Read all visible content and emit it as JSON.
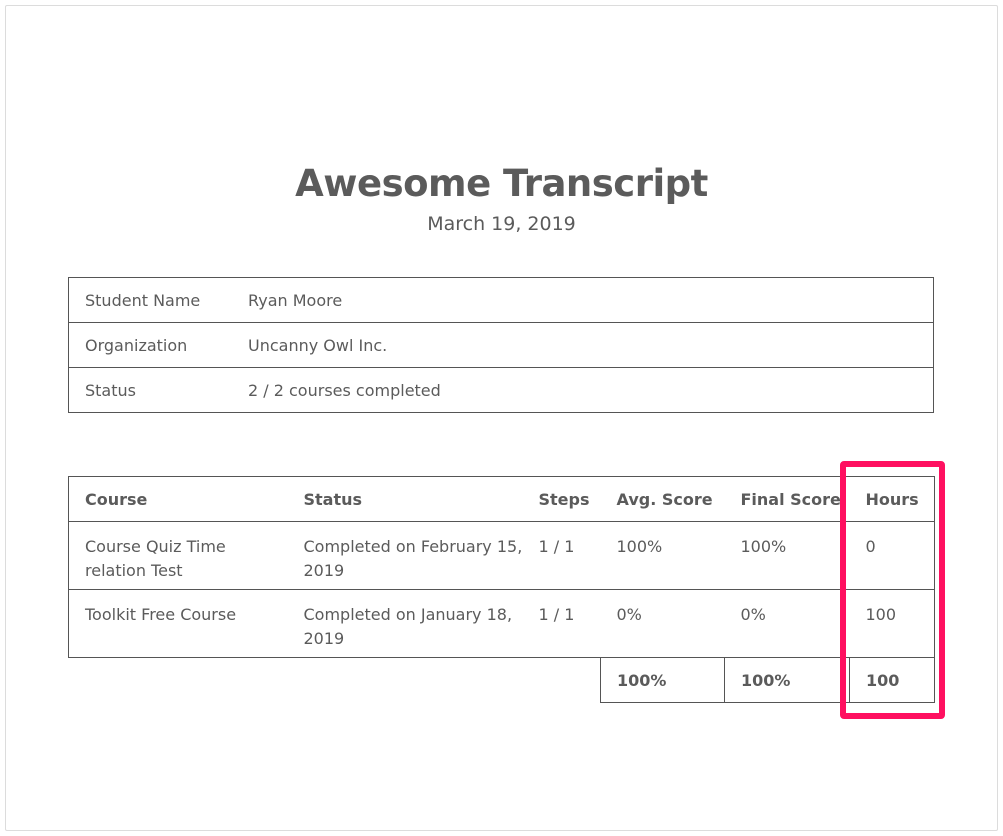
{
  "title": "Awesome Transcript",
  "date": "March 19, 2019",
  "info": [
    {
      "label": "Student Name",
      "value": "Ryan Moore"
    },
    {
      "label": "Organization",
      "value": "Uncanny Owl Inc."
    },
    {
      "label": "Status",
      "value": "2 / 2 courses completed"
    }
  ],
  "courses": {
    "headers": [
      "Course",
      "Status",
      "Steps",
      "Avg. Score",
      "Final Score",
      "Hours"
    ],
    "rows": [
      [
        "Course Quiz Time relation Test",
        "Completed on February 15, 2019",
        "1 / 1",
        "100%",
        "100%",
        "0"
      ],
      [
        "Toolkit Free Course",
        "Completed on January 18, 2019",
        "1 / 1",
        "0%",
        "0%",
        "100"
      ]
    ],
    "totals": {
      "avg": "100%",
      "final": "100%",
      "hours": "100"
    }
  },
  "highlight_color": "#ff1060"
}
